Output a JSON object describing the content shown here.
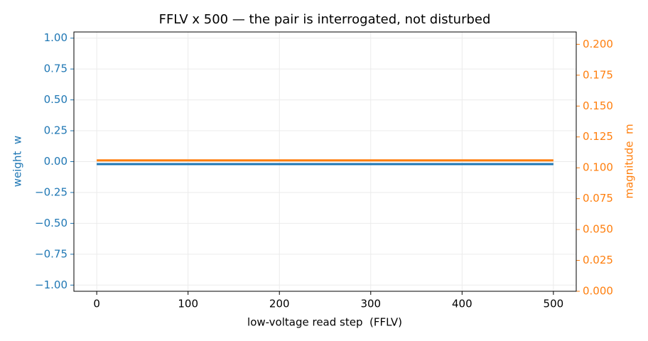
{
  "chart_data": {
    "type": "line",
    "title": "FFLV x 500 — the pair is interrogated, not disturbed",
    "x_label": "low-voltage read step  (FFLV)",
    "y_label": "weight  w",
    "y2_label": "magnitude  m",
    "x": [
      0,
      500
    ],
    "series": [
      {
        "name": "weight w",
        "color": "#1f77b4",
        "values": [
          -0.02,
          -0.02
        ]
      },
      {
        "name": "magnitude m",
        "color": "#ff7f0e",
        "axis": "y2",
        "values": [
          0.106,
          0.106
        ]
      }
    ],
    "xlim": [
      -25,
      525
    ],
    "xticks": [
      0,
      100,
      200,
      300,
      400,
      500
    ],
    "ylim": [
      -1.05,
      1.05
    ],
    "yticks": [
      {
        "value": -1,
        "label": "−1.00"
      },
      {
        "value": -0.75,
        "label": "−0.75"
      },
      {
        "value": -0.5,
        "label": "−0.50"
      },
      {
        "value": -0.25,
        "label": "−0.25"
      },
      {
        "value": 0,
        "label": "0.00"
      },
      {
        "value": 0.25,
        "label": "0.25"
      },
      {
        "value": 0.5,
        "label": "0.50"
      },
      {
        "value": 0.75,
        "label": "0.75"
      },
      {
        "value": 1,
        "label": "1.00"
      }
    ],
    "y2lim": [
      0,
      0.21
    ],
    "y2ticks": [
      {
        "value": 0,
        "label": "0.000"
      },
      {
        "value": 0.025,
        "label": "0.025"
      },
      {
        "value": 0.05,
        "label": "0.050"
      },
      {
        "value": 0.075,
        "label": "0.075"
      },
      {
        "value": 0.1,
        "label": "0.100"
      },
      {
        "value": 0.125,
        "label": "0.125"
      },
      {
        "value": 0.15,
        "label": "0.150"
      },
      {
        "value": 0.175,
        "label": "0.175"
      },
      {
        "value": 0.2,
        "label": "0.200"
      }
    ],
    "grid": true
  }
}
